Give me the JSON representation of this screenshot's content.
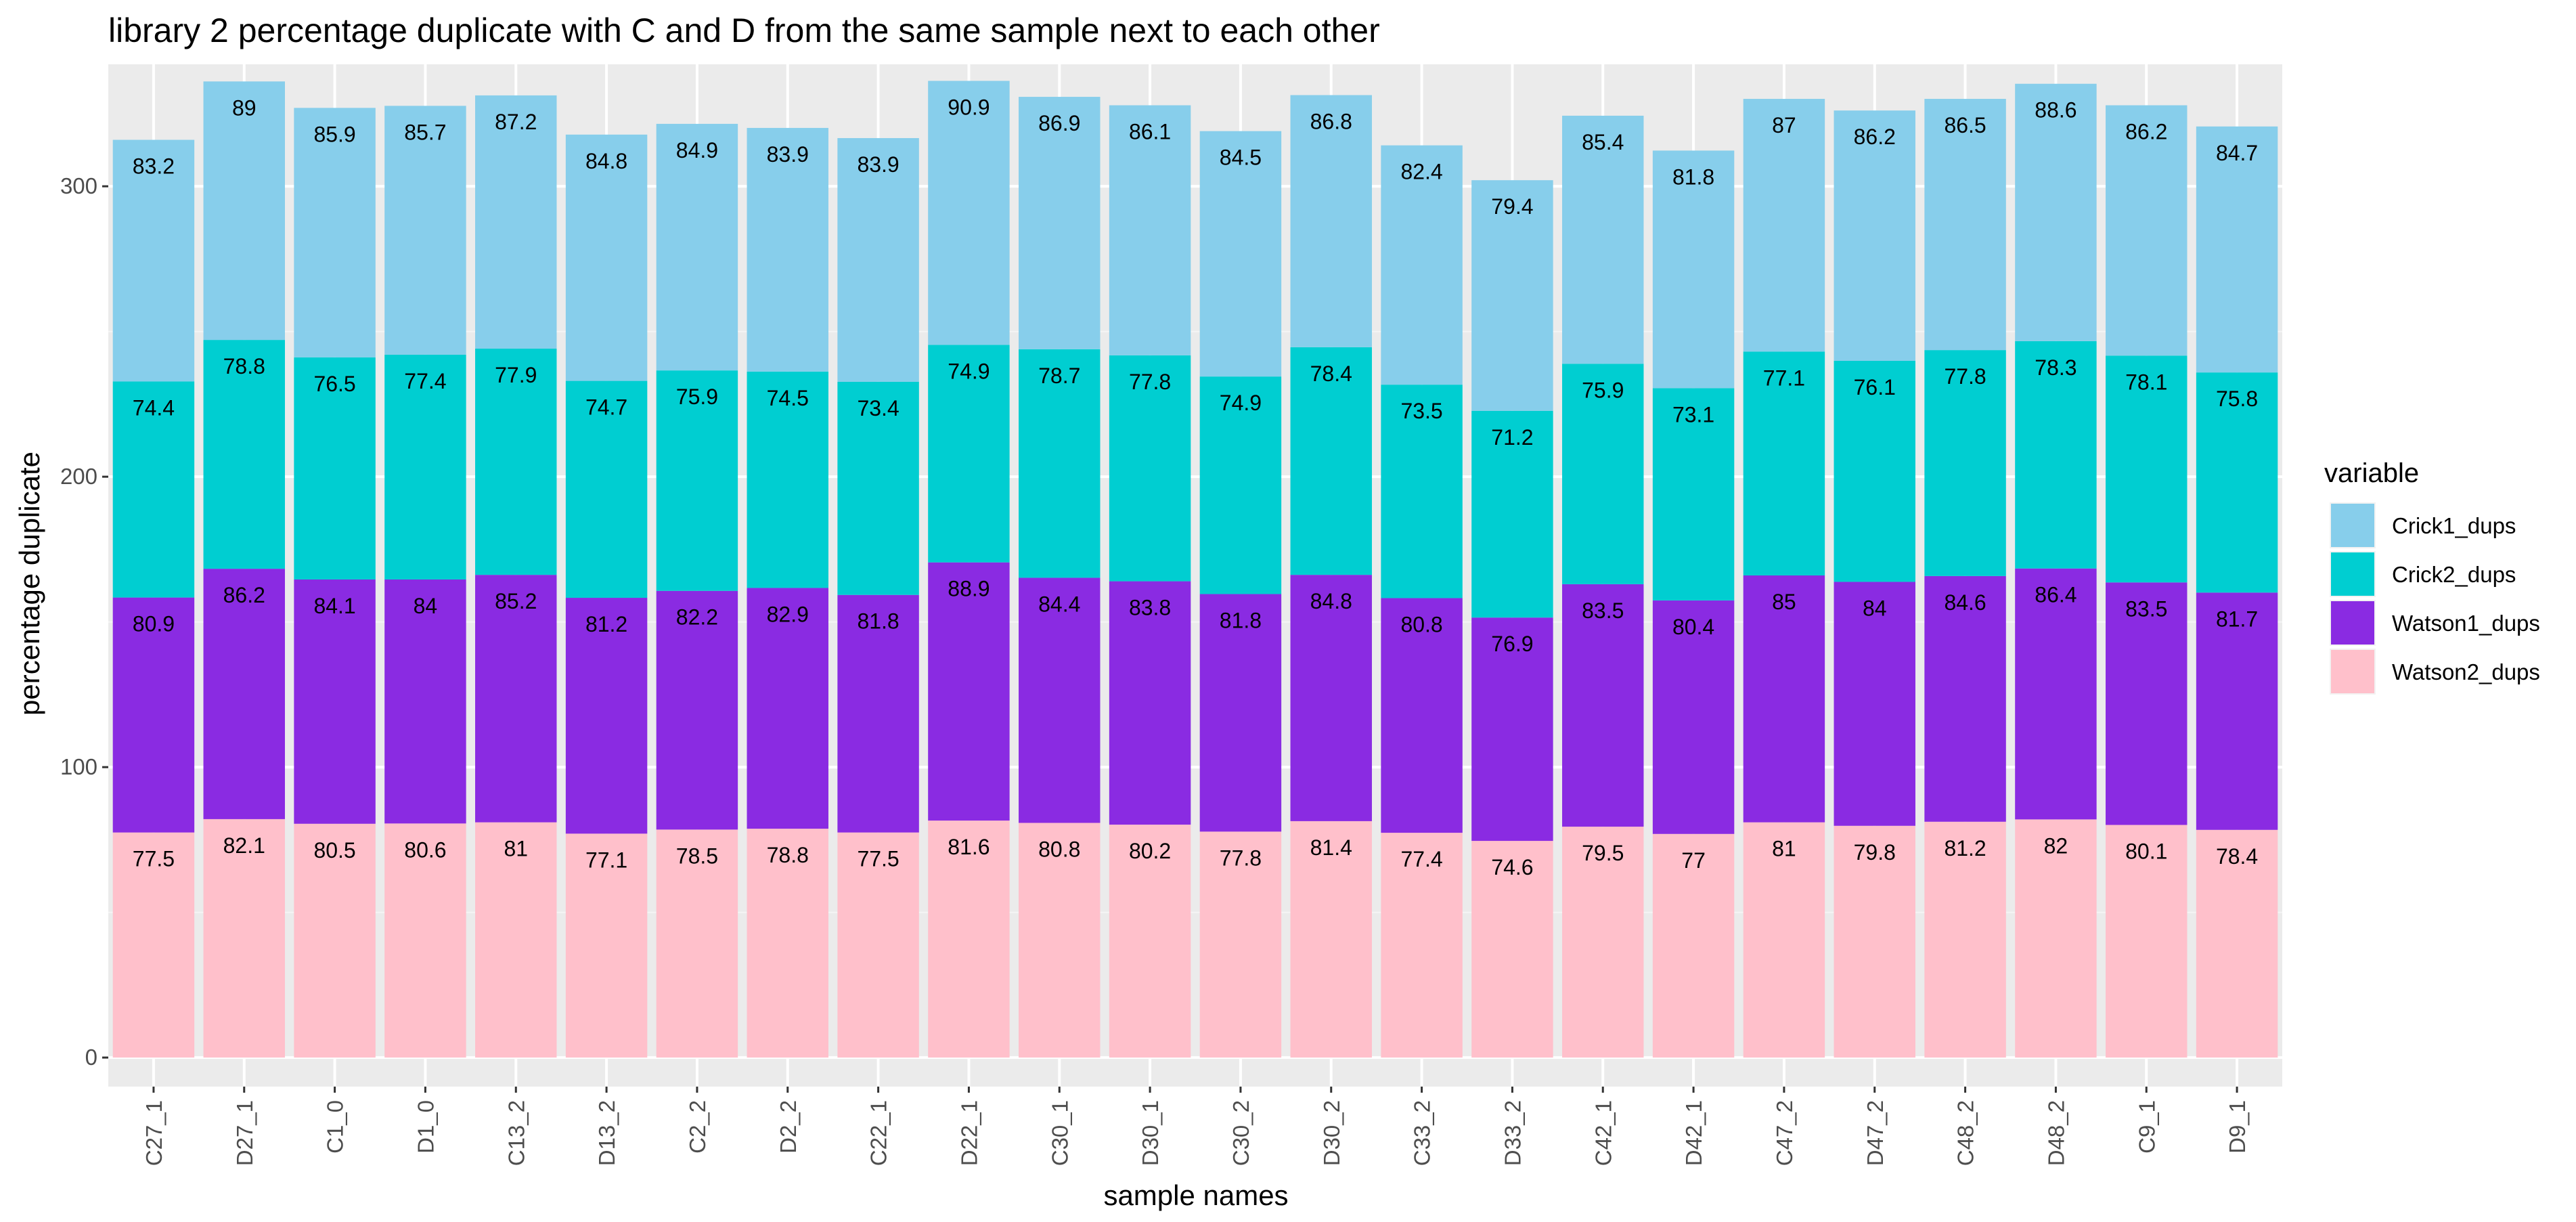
{
  "chart_data": {
    "type": "bar",
    "stacked": true,
    "title": "library 2 percentage duplicate with C and D from the same sample next to each other",
    "xlabel": "sample names",
    "ylabel": "percentage duplicate",
    "ylim": [
      -10,
      342
    ],
    "yticks": [
      0,
      100,
      200,
      300
    ],
    "grid": true,
    "legend": {
      "title": "variable",
      "position": "right"
    },
    "categories": [
      "C27_1",
      "D27_1",
      "C1_0",
      "D1_0",
      "C13_2",
      "D13_2",
      "C2_2",
      "D2_2",
      "C22_1",
      "D22_1",
      "C30_1",
      "D30_1",
      "C30_2",
      "D30_2",
      "C33_2",
      "D33_2",
      "C42_1",
      "D42_1",
      "C47_2",
      "D47_2",
      "C48_2",
      "D48_2",
      "C9_1",
      "D9_1"
    ],
    "series": [
      {
        "name": "Watson2_dups",
        "color": "#FFC0CB",
        "values": [
          77.5,
          82.1,
          80.5,
          80.6,
          81,
          77.1,
          78.5,
          78.8,
          77.5,
          81.6,
          80.8,
          80.2,
          77.8,
          81.4,
          77.4,
          74.6,
          79.5,
          77,
          81,
          79.8,
          81.2,
          82,
          80.1,
          78.4
        ]
      },
      {
        "name": "Watson1_dups",
        "color": "#8A2BE2",
        "values": [
          80.9,
          86.2,
          84.1,
          84,
          85.2,
          81.2,
          82.2,
          82.9,
          81.8,
          88.9,
          84.4,
          83.8,
          81.8,
          84.8,
          80.8,
          76.9,
          83.5,
          80.4,
          85,
          84,
          84.6,
          86.4,
          83.5,
          81.7
        ]
      },
      {
        "name": "Crick2_dups",
        "color": "#00CED1",
        "values": [
          74.4,
          78.8,
          76.5,
          77.4,
          77.9,
          74.7,
          75.9,
          74.5,
          73.4,
          74.9,
          78.7,
          77.8,
          74.9,
          78.4,
          73.5,
          71.2,
          75.9,
          73.1,
          77.1,
          76.1,
          77.8,
          78.3,
          78.1,
          75.8
        ]
      },
      {
        "name": "Crick1_dups",
        "color": "#87CEEB",
        "values": [
          83.2,
          89,
          85.9,
          85.7,
          87.2,
          84.8,
          84.9,
          83.9,
          83.9,
          90.9,
          86.9,
          86.1,
          84.5,
          86.8,
          82.4,
          79.4,
          85.4,
          81.8,
          87,
          86.2,
          86.5,
          88.6,
          86.2,
          84.7
        ]
      }
    ],
    "legend_order": [
      "Crick1_dups",
      "Crick2_dups",
      "Watson1_dups",
      "Watson2_dups"
    ]
  }
}
